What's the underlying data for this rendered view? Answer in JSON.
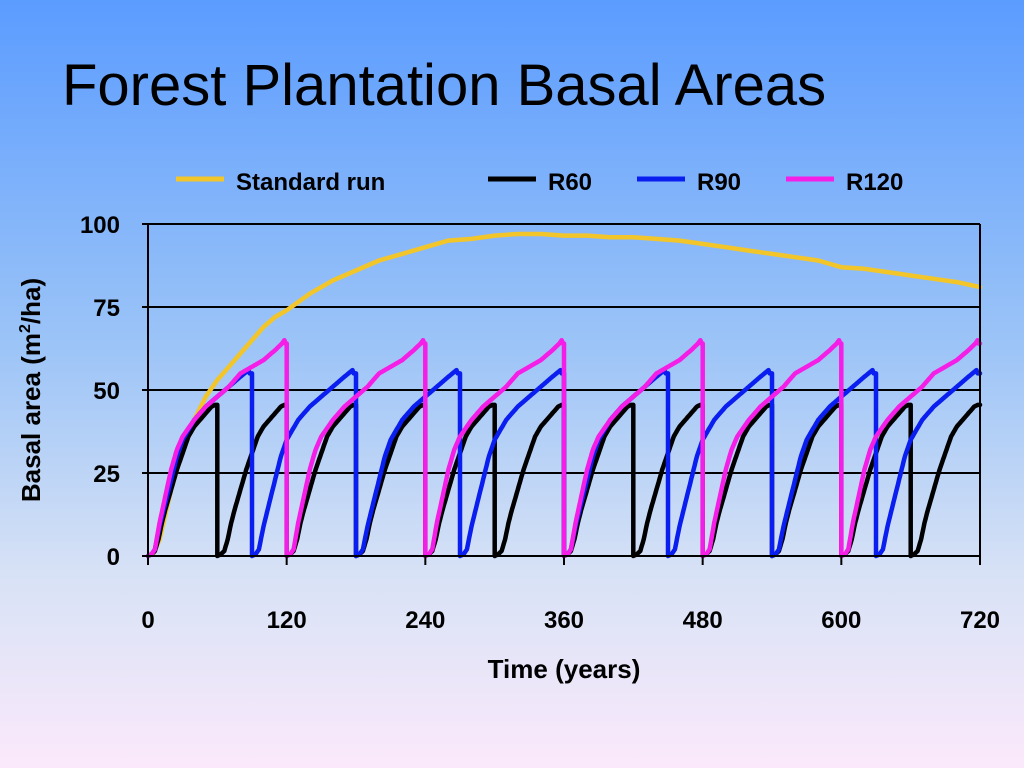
{
  "chart_data": {
    "type": "line",
    "title": "Forest Plantation Basal Areas",
    "xlabel": "Time (years)",
    "ylabel": "Basal area (m2/ha)",
    "ylabel_parts": {
      "pre": "Basal area (m",
      "sup": "2",
      "post": "/ha)"
    },
    "xlim": [
      0,
      720
    ],
    "ylim": [
      0,
      100
    ],
    "x_ticks": [
      0,
      120,
      240,
      360,
      480,
      600,
      720
    ],
    "y_ticks": [
      0,
      25,
      50,
      75,
      100
    ],
    "grid": "horizontal",
    "legend_position": "top",
    "series": [
      {
        "name": "Standard run",
        "color": "#f2c62a",
        "x": [
          0,
          5,
          10,
          20,
          30,
          40,
          50,
          60,
          70,
          80,
          90,
          100,
          110,
          120,
          140,
          160,
          180,
          200,
          220,
          240,
          260,
          280,
          300,
          320,
          340,
          360,
          380,
          400,
          420,
          440,
          460,
          480,
          500,
          520,
          540,
          560,
          580,
          600,
          620,
          640,
          660,
          680,
          700,
          720
        ],
        "y": [
          0,
          1,
          5,
          20,
          32,
          41,
          48,
          53,
          57,
          61,
          65,
          69,
          72,
          74,
          79,
          83,
          86,
          89,
          91,
          93,
          95,
          95.5,
          96.5,
          97,
          97,
          96.5,
          96.5,
          96,
          96,
          95.5,
          95,
          94,
          93,
          92,
          91,
          90,
          89,
          87,
          86.5,
          85.5,
          84.5,
          83.5,
          82.5,
          81
        ]
      },
      {
        "name": "R60",
        "color": "#000000",
        "rotation": 60,
        "growth": [
          [
            0,
            0
          ],
          [
            3,
            0.5
          ],
          [
            6,
            1.5
          ],
          [
            9,
            5
          ],
          [
            12,
            10
          ],
          [
            15,
            14
          ],
          [
            20,
            20
          ],
          [
            25,
            26
          ],
          [
            30,
            31
          ],
          [
            35,
            36
          ],
          [
            40,
            39
          ],
          [
            45,
            41
          ],
          [
            50,
            43
          ],
          [
            55,
            45
          ],
          [
            58,
            45.5
          ]
        ]
      },
      {
        "name": "R90",
        "color": "#0a1ef0",
        "rotation": 90,
        "growth": [
          [
            0,
            0
          ],
          [
            3,
            0.5
          ],
          [
            6,
            2
          ],
          [
            10,
            9
          ],
          [
            15,
            16
          ],
          [
            20,
            23
          ],
          [
            25,
            30
          ],
          [
            30,
            35
          ],
          [
            35,
            38
          ],
          [
            40,
            41
          ],
          [
            50,
            45
          ],
          [
            60,
            48
          ],
          [
            70,
            51
          ],
          [
            80,
            54
          ],
          [
            87,
            56
          ],
          [
            88,
            55
          ]
        ]
      },
      {
        "name": "R120",
        "color": "#f51ee6",
        "rotation": 120,
        "growth": [
          [
            0,
            0
          ],
          [
            3,
            0.5
          ],
          [
            6,
            2
          ],
          [
            10,
            10
          ],
          [
            15,
            18
          ],
          [
            20,
            26
          ],
          [
            25,
            32
          ],
          [
            30,
            36
          ],
          [
            40,
            41
          ],
          [
            50,
            45
          ],
          [
            60,
            48
          ],
          [
            70,
            51
          ],
          [
            80,
            55
          ],
          [
            90,
            57
          ],
          [
            100,
            59
          ],
          [
            110,
            62
          ],
          [
            116,
            64
          ],
          [
            118,
            65
          ],
          [
            119,
            64
          ]
        ]
      }
    ]
  }
}
